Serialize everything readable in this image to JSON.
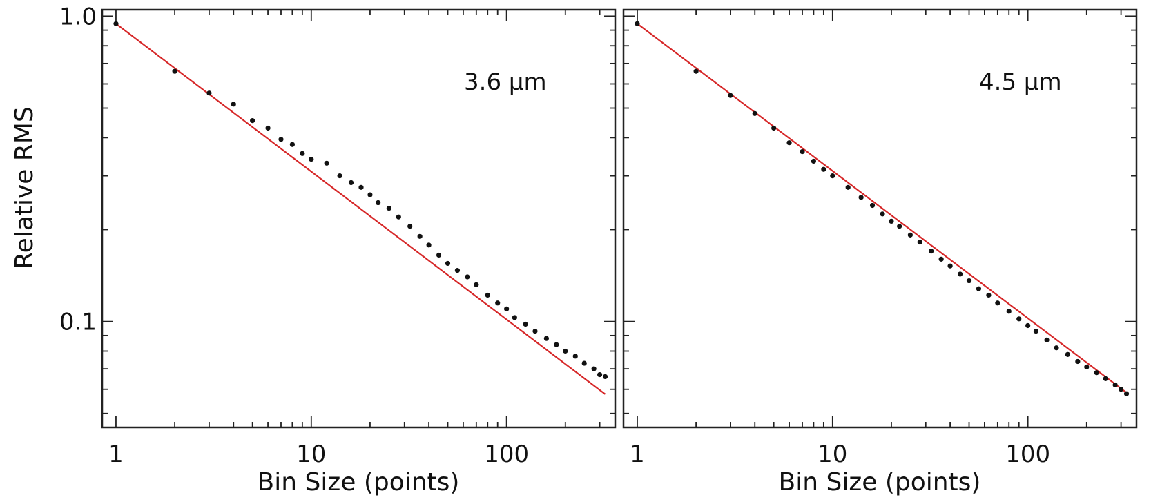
{
  "chart_data": [
    {
      "type": "scatter",
      "panel_label": "3.6 μm",
      "xlabel": "Bin Size (points)",
      "ylabel": "Relative RMS",
      "x_scale": "log",
      "y_scale": "log",
      "xlim": [
        0.85,
        360
      ],
      "ylim": [
        0.045,
        1.05
      ],
      "xticks": [
        "1",
        "10",
        "100"
      ],
      "yticks": [
        "1.0",
        "0.1"
      ],
      "colors": {
        "points": "#111111",
        "fit_line": "#d62728"
      },
      "fit_line": {
        "x": [
          1,
          320
        ],
        "y": [
          0.945,
          0.0578
        ]
      },
      "series": [
        {
          "x": [
            1,
            2,
            3,
            4,
            5,
            6,
            7,
            8,
            9,
            10,
            12,
            14,
            16,
            18,
            20,
            22,
            25,
            28,
            32,
            36,
            40,
            45,
            50,
            56,
            63,
            70,
            80,
            90,
            100,
            110,
            125,
            140,
            160,
            180,
            200,
            225,
            250,
            280,
            300,
            320
          ],
          "y": [
            0.945,
            0.66,
            0.56,
            0.515,
            0.455,
            0.43,
            0.395,
            0.38,
            0.355,
            0.34,
            0.33,
            0.3,
            0.285,
            0.275,
            0.26,
            0.245,
            0.235,
            0.22,
            0.205,
            0.19,
            0.178,
            0.165,
            0.155,
            0.147,
            0.14,
            0.132,
            0.122,
            0.115,
            0.11,
            0.103,
            0.098,
            0.093,
            0.088,
            0.084,
            0.08,
            0.077,
            0.073,
            0.07,
            0.067,
            0.066
          ]
        }
      ]
    },
    {
      "type": "scatter",
      "panel_label": "4.5 μm",
      "xlabel": "Bin Size (points)",
      "ylabel": "",
      "x_scale": "log",
      "y_scale": "log",
      "xlim": [
        0.85,
        360
      ],
      "ylim": [
        0.045,
        1.05
      ],
      "xticks": [
        "1",
        "10",
        "100"
      ],
      "yticks": [],
      "colors": {
        "points": "#111111",
        "fit_line": "#d62728"
      },
      "fit_line": {
        "x": [
          1,
          320
        ],
        "y": [
          0.945,
          0.0585
        ]
      },
      "series": [
        {
          "x": [
            1,
            2,
            3,
            4,
            5,
            6,
            7,
            8,
            9,
            10,
            12,
            14,
            16,
            18,
            20,
            22,
            25,
            28,
            32,
            36,
            40,
            45,
            50,
            56,
            63,
            70,
            80,
            90,
            100,
            110,
            125,
            140,
            160,
            180,
            200,
            225,
            250,
            280,
            300,
            320
          ],
          "y": [
            0.945,
            0.66,
            0.55,
            0.48,
            0.43,
            0.385,
            0.36,
            0.335,
            0.315,
            0.3,
            0.275,
            0.255,
            0.24,
            0.225,
            0.213,
            0.205,
            0.192,
            0.182,
            0.17,
            0.16,
            0.152,
            0.143,
            0.136,
            0.128,
            0.122,
            0.115,
            0.108,
            0.102,
            0.097,
            0.093,
            0.087,
            0.082,
            0.078,
            0.074,
            0.071,
            0.068,
            0.065,
            0.062,
            0.06,
            0.058
          ]
        }
      ]
    }
  ]
}
